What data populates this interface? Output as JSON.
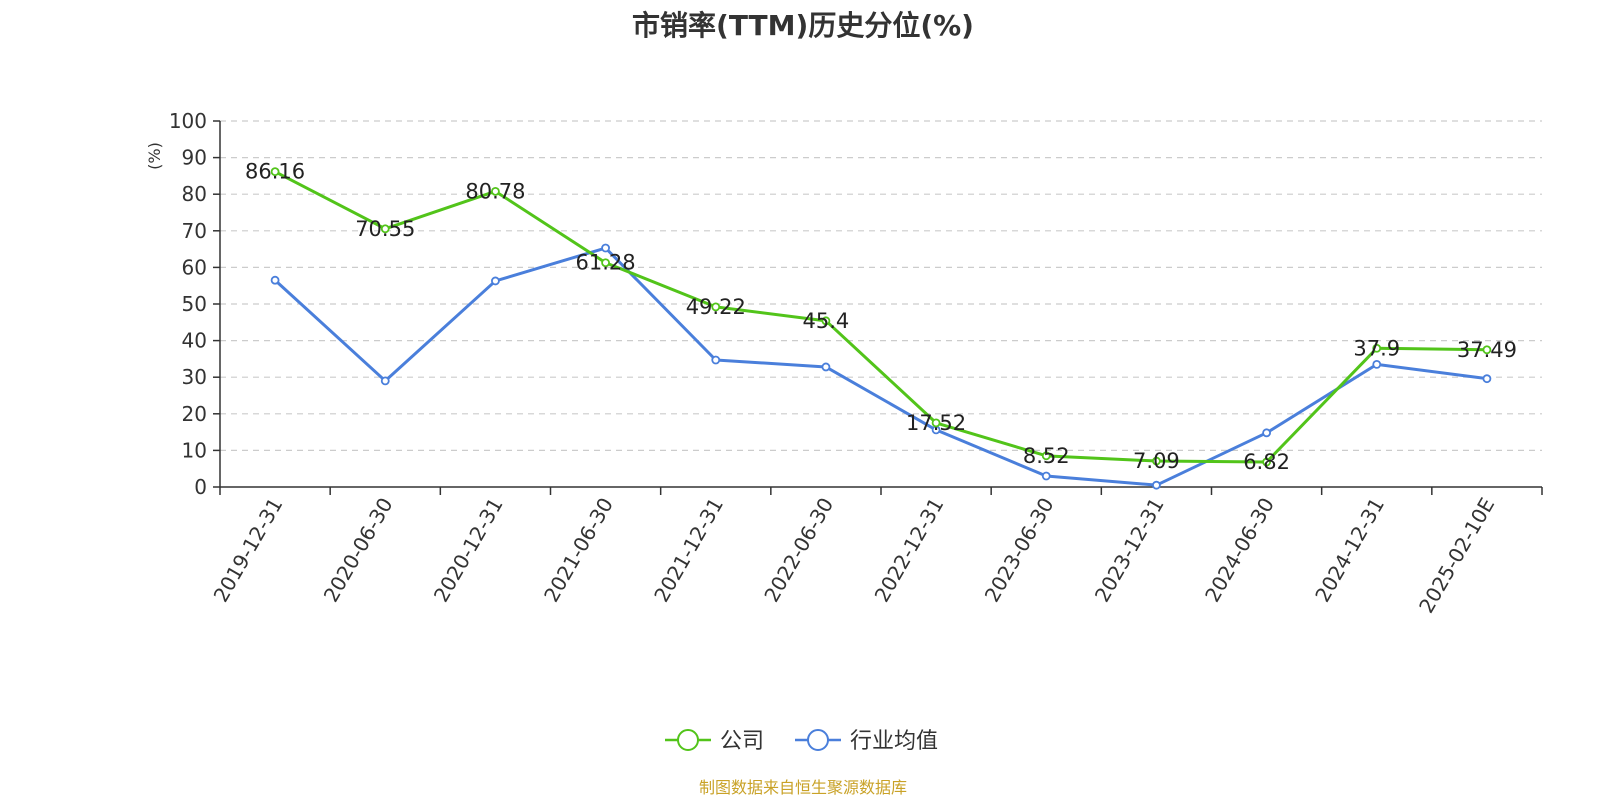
{
  "chart_data": {
    "type": "line",
    "title": "市销率(TTM)历史分位(%)",
    "ylabel": "(%)",
    "ylim": [
      0,
      100
    ],
    "yticks": [
      0,
      10,
      20,
      30,
      40,
      50,
      60,
      70,
      80,
      90,
      100
    ],
    "grid": true,
    "legend_position": "bottom",
    "categories": [
      "2019-12-31",
      "2020-06-30",
      "2020-12-31",
      "2021-06-30",
      "2021-12-31",
      "2022-06-30",
      "2022-12-31",
      "2023-06-30",
      "2023-12-31",
      "2024-06-30",
      "2024-12-31",
      "2025-02-10E"
    ],
    "series": [
      {
        "name": "公司",
        "color": "#52c41a",
        "values": [
          86.16,
          70.55,
          80.78,
          61.28,
          49.22,
          45.4,
          17.52,
          8.52,
          7.09,
          6.82,
          37.9,
          37.49
        ],
        "show_labels": true
      },
      {
        "name": "行业均值",
        "color": "#4a7fdb",
        "values": [
          56.5,
          29,
          56.3,
          65.3,
          34.7,
          32.8,
          15.6,
          3,
          0.5,
          14.8,
          33.5,
          29.6
        ],
        "show_labels": false
      }
    ],
    "source": "制图数据来自恒生聚源数据库",
    "source_color": "#c9a227",
    "ylabel_color": "#e00000"
  }
}
